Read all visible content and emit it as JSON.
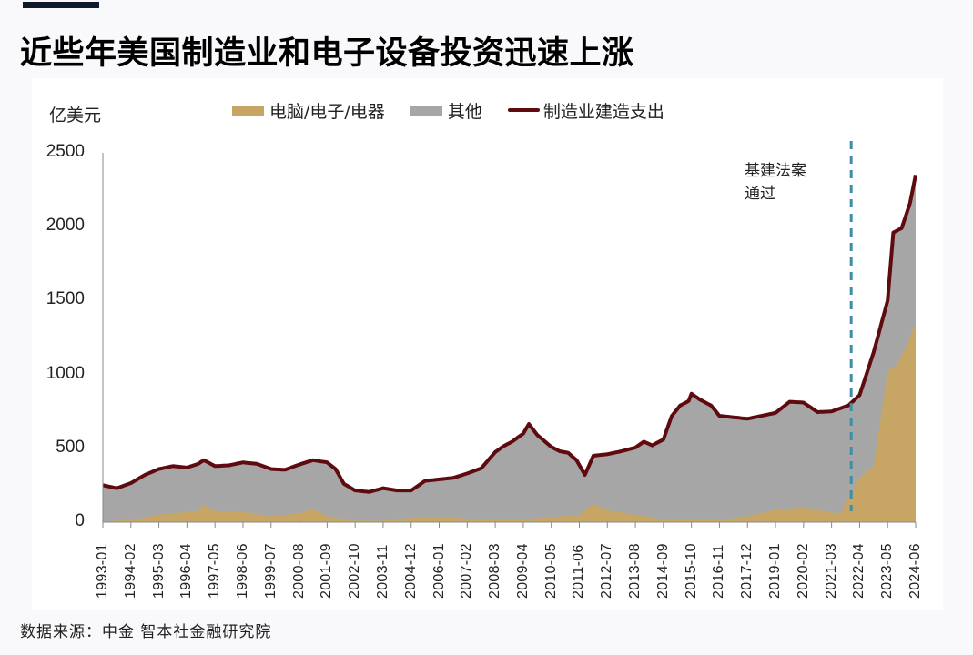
{
  "header": {
    "title": "近些年美国制造业和电子设备投资迅速上涨"
  },
  "footer": {
    "source": "数据来源：中金 智本社金融研究院"
  },
  "colors": {
    "electronics": "#c7a665",
    "other": "#a6a6a6",
    "total_line": "#5e0a0e",
    "dashed_line": "#3d8ea6",
    "title_bar": "#0f1a2c"
  },
  "chart_data": {
    "type": "area",
    "title": "近些年美国制造业和电子设备投资迅速上涨",
    "ylabel": "亿美元",
    "xlabel": "",
    "ylim": [
      0,
      2500
    ],
    "yticks": [
      0,
      500,
      1000,
      1500,
      2000,
      2500
    ],
    "grid": false,
    "legend_position": "top",
    "legend": [
      "电脑/电子/电器",
      "其他",
      "制造业建造支出"
    ],
    "categories": [
      "1993-01",
      "1994-02",
      "1995-03",
      "1996-04",
      "1997-05",
      "1998-06",
      "1999-07",
      "2000-08",
      "2001-09",
      "2002-10",
      "2003-11",
      "2004-12",
      "2006-01",
      "2007-02",
      "2008-03",
      "2009-04",
      "2010-05",
      "2011-06",
      "2012-07",
      "2013-08",
      "2014-09",
      "2015-10",
      "2016-11",
      "2017-12",
      "2019-01",
      "2020-02",
      "2021-03",
      "2022-04",
      "2023-05",
      "2024-06"
    ],
    "x_index": [
      0,
      1,
      2,
      3,
      4,
      5,
      6,
      7,
      8,
      9,
      10,
      11,
      12,
      13,
      14,
      15,
      16,
      17,
      18,
      19,
      20,
      21,
      22,
      23,
      24,
      25,
      26,
      27,
      28,
      29
    ],
    "series": [
      {
        "name": "电脑/电子/电器",
        "kind": "stacked-area",
        "x": [
          0,
          1,
          2,
          3,
          3.4,
          3.6,
          4,
          5,
          6,
          7,
          7.5,
          8,
          9,
          10,
          11,
          12,
          13,
          14,
          15,
          16,
          17,
          17.5,
          18,
          19,
          20,
          21,
          22,
          23,
          24,
          25,
          26,
          26.3,
          27,
          27.5,
          28,
          28.3,
          28.7,
          29
        ],
        "values": [
          5,
          15,
          50,
          70,
          75,
          120,
          75,
          70,
          40,
          60,
          90,
          40,
          10,
          10,
          30,
          35,
          25,
          15,
          20,
          35,
          50,
          125,
          80,
          50,
          20,
          15,
          15,
          40,
          85,
          100,
          65,
          60,
          300,
          380,
          1020,
          1060,
          1200,
          1350
        ]
      },
      {
        "name": "其他",
        "kind": "stacked-area",
        "note": "Values are the remainder: total minus electronics",
        "x": [],
        "values": []
      },
      {
        "name": "制造业建造支出",
        "kind": "line",
        "x": [
          0,
          0.5,
          1,
          1.5,
          2,
          2.5,
          3,
          3.4,
          3.6,
          4,
          4.5,
          5,
          5.5,
          6,
          6.5,
          7,
          7.5,
          8,
          8.3,
          8.6,
          9,
          9.5,
          10,
          10.5,
          11,
          11.5,
          12,
          12.5,
          13,
          13.5,
          14,
          14.3,
          14.6,
          15,
          15.2,
          15.5,
          16,
          16.3,
          16.6,
          16.9,
          17.2,
          17.5,
          18,
          18.5,
          19,
          19.3,
          19.6,
          20,
          20.3,
          20.6,
          20.9,
          21,
          21.3,
          21.7,
          22,
          22.5,
          23,
          23.5,
          24,
          24.5,
          25,
          25.5,
          26,
          26.3,
          26.6,
          27,
          27.5,
          28,
          28.2,
          28.5,
          28.8,
          29
        ],
        "values": [
          250,
          230,
          265,
          320,
          360,
          380,
          370,
          395,
          420,
          380,
          385,
          405,
          395,
          360,
          355,
          390,
          420,
          405,
          360,
          260,
          215,
          205,
          230,
          215,
          215,
          280,
          290,
          300,
          330,
          365,
          475,
          515,
          545,
          600,
          665,
          590,
          510,
          480,
          470,
          420,
          320,
          450,
          460,
          480,
          505,
          545,
          520,
          560,
          720,
          790,
          820,
          870,
          830,
          790,
          720,
          710,
          700,
          720,
          740,
          815,
          810,
          745,
          750,
          770,
          790,
          860,
          1150,
          1500,
          1960,
          1990,
          2160,
          2350
        ]
      }
    ],
    "annotations": [
      {
        "text": "基建法案\n通过",
        "x_position": "2021-11",
        "style": "dashed vertical line"
      }
    ]
  },
  "axes": {
    "y_unit": "亿美元",
    "y_ticks": [
      "2500",
      "2000",
      "1500",
      "1000",
      "500",
      "0"
    ]
  },
  "annotation": {
    "line1": "基建法案",
    "line2": "通过"
  },
  "legend": {
    "items": [
      {
        "label": "电脑/电子/电器",
        "type": "box"
      },
      {
        "label": "其他",
        "type": "box"
      },
      {
        "label": "制造业建造支出",
        "type": "line"
      }
    ]
  }
}
